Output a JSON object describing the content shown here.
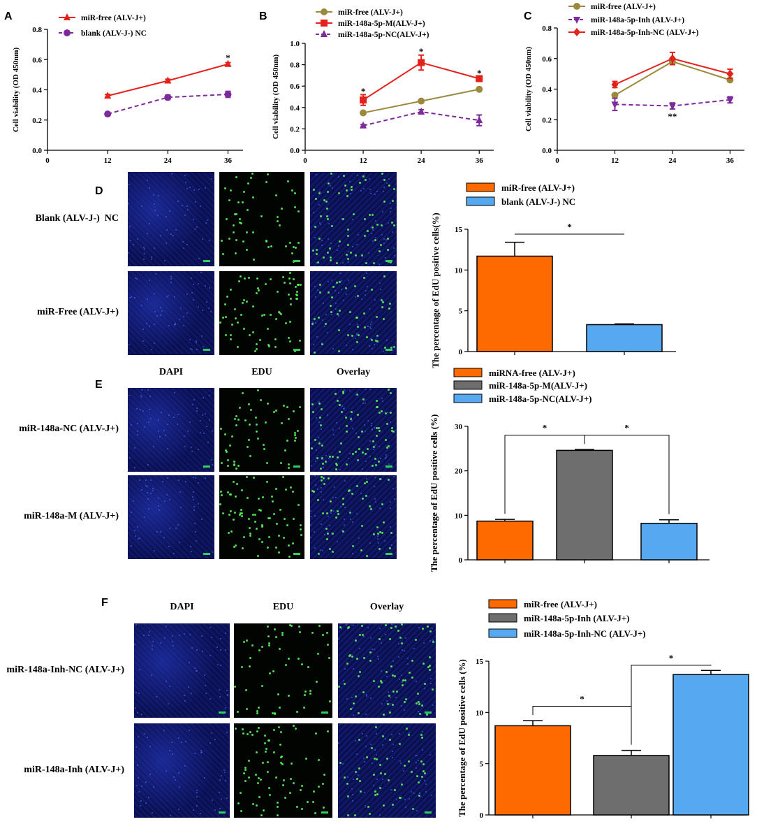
{
  "colors": {
    "red": "#e3221c",
    "olive": "#9b8a3d",
    "purple": "#7d2a9c",
    "orange": "#ff6a00",
    "lightblue": "#56a9f0",
    "gray": "#6e6e6e"
  },
  "panel_labels": {
    "A": "A",
    "B": "B",
    "C": "C",
    "D": "D",
    "E": "E",
    "F": "F"
  },
  "microscopy": {
    "columns": [
      "DAPI",
      "EDU",
      "Overlay"
    ],
    "D_rows": [
      "Blank (ALV-J-)  NC",
      "miR-Free (ALV-J+)"
    ],
    "E_rows": [
      "miR-148a-NC (ALV-J+)",
      "miR-148a-M (ALV-J+)"
    ],
    "F_rows": [
      "miR-148a-Inh-NC (ALV-J+)",
      "miR-148a-Inh (ALV-J+)"
    ]
  },
  "chart_data": [
    {
      "id": "A",
      "type": "line",
      "ylabel": "Cell viability (OD 450nm)",
      "x": [
        12,
        24,
        36
      ],
      "xticks": [
        "0",
        "12",
        "24",
        "36"
      ],
      "xlim": [
        0,
        39
      ],
      "ylim": [
        0,
        0.8
      ],
      "yticks": [
        "0.0",
        "0.2",
        "0.4",
        "0.6",
        "0.8"
      ],
      "series": [
        {
          "name": "miR-free (ALV-J+)",
          "values": [
            0.36,
            0.46,
            0.57
          ],
          "errors": [
            0.01,
            0.01,
            0.01
          ],
          "color": "#e3221c",
          "marker": "triangle",
          "dashed": false
        },
        {
          "name": "blank (ALV-J-) NC",
          "values": [
            0.24,
            0.35,
            0.37
          ],
          "errors": [
            0.01,
            0.015,
            0.02
          ],
          "color": "#7d2a9c",
          "marker": "circle",
          "dashed": true
        }
      ],
      "annotations": [
        {
          "x": 36,
          "y": 0.61,
          "text": "*"
        }
      ]
    },
    {
      "id": "B",
      "type": "line",
      "ylabel": "Cell viability (OD 450nm)",
      "x": [
        12,
        24,
        36
      ],
      "xticks": [
        "0",
        "12",
        "24",
        "36"
      ],
      "xlim": [
        0,
        39
      ],
      "ylim": [
        0,
        1.0
      ],
      "yticks": [
        "0.0",
        "0.2",
        "0.4",
        "0.6",
        "0.8",
        "1.0"
      ],
      "series": [
        {
          "name": "miR-free (ALV-J+)",
          "values": [
            0.35,
            0.46,
            0.57
          ],
          "errors": [
            0.01,
            0.01,
            0.01
          ],
          "color": "#9b8a3d",
          "marker": "circle",
          "dashed": false
        },
        {
          "name": "miR-148a-5p-M(ALV-J+)",
          "values": [
            0.47,
            0.82,
            0.67
          ],
          "errors": [
            0.05,
            0.07,
            0.02
          ],
          "color": "#e3221c",
          "marker": "square",
          "dashed": false
        },
        {
          "name": "miR-148a-5p-NC(ALV-J+)",
          "values": [
            0.23,
            0.36,
            0.28
          ],
          "errors": [
            0.01,
            0.02,
            0.05
          ],
          "color": "#7d2a9c",
          "marker": "triangle",
          "dashed": true
        }
      ],
      "annotations": [
        {
          "x": 12,
          "y": 0.55,
          "text": "*"
        },
        {
          "x": 24,
          "y": 0.92,
          "text": "*"
        },
        {
          "x": 36,
          "y": 0.72,
          "text": "*"
        }
      ]
    },
    {
      "id": "C",
      "type": "line",
      "ylabel": "Cell viability (OD 450nm)",
      "x": [
        12,
        24,
        36
      ],
      "xticks": [
        "0",
        "12",
        "24",
        "36"
      ],
      "xlim": [
        0,
        39
      ],
      "ylim": [
        0,
        0.8
      ],
      "yticks": [
        "0.0",
        "0.2",
        "0.4",
        "0.6",
        "0.8"
      ],
      "series": [
        {
          "name": "miR-free (ALV-J+)",
          "values": [
            0.36,
            0.58,
            0.46
          ],
          "errors": [
            0.01,
            0.02,
            0.01
          ],
          "color": "#9b8a3d",
          "marker": "circle",
          "dashed": false
        },
        {
          "name": "miR-148a-5p-Inh (ALV-J+)",
          "values": [
            0.3,
            0.29,
            0.33
          ],
          "errors": [
            0.04,
            0.02,
            0.02
          ],
          "color": "#7d2a9c",
          "marker": "triangle-down",
          "dashed": true
        },
        {
          "name": "miR-148a-5p-Inh-NC (ALV-J+)",
          "values": [
            0.43,
            0.6,
            0.5
          ],
          "errors": [
            0.02,
            0.04,
            0.03
          ],
          "color": "#e3221c",
          "marker": "diamond",
          "dashed": false
        }
      ],
      "annotations": [
        {
          "x": 24,
          "y": 0.22,
          "text": "**"
        }
      ]
    },
    {
      "id": "D",
      "type": "bar",
      "ylabel": "The percentage of EdU positive cells(%)",
      "categories": [
        "miR-free (ALV-J+)",
        "blank (ALV-J-) NC"
      ],
      "values": [
        11.7,
        3.3
      ],
      "errors": [
        1.7,
        0.1
      ],
      "colors": [
        "#ff6a00",
        "#56a9f0"
      ],
      "ylim": [
        0,
        15
      ],
      "yticks": [
        "0",
        "5",
        "10",
        "15"
      ],
      "significance": [
        {
          "from": 0,
          "to": 1,
          "text": "*",
          "style": "line",
          "y": 14.4
        }
      ]
    },
    {
      "id": "E",
      "type": "bar",
      "ylabel": "The percentage of EdU positive cells (%)",
      "categories": [
        "miRNA-free (ALV-J+)",
        "miR-148a-5p-M(ALV-J+)",
        "miR-148a-5p-NC(ALV-J+)"
      ],
      "values": [
        8.7,
        24.6,
        8.2
      ],
      "errors": [
        0.4,
        0.2,
        0.8
      ],
      "colors": [
        "#ff6a00",
        "#6e6e6e",
        "#56a9f0"
      ],
      "ylim": [
        0,
        30
      ],
      "yticks": [
        "0",
        "10",
        "20",
        "30"
      ],
      "significance": [
        {
          "from": 0,
          "to": 1,
          "text": "*",
          "style": "bracket",
          "y": 28
        },
        {
          "from": 1,
          "to": 2,
          "text": "*",
          "style": "bracket",
          "y": 28
        }
      ]
    },
    {
      "id": "F",
      "type": "bar",
      "ylabel": "The percentage of EdU positive cells (%)",
      "categories": [
        "miR-free (ALV-J+)",
        "miR-148a-5p-Inh (ALV-J+)",
        "miR-148a-5p-Inh-NC (ALV-J+)"
      ],
      "values": [
        8.7,
        5.8,
        13.7
      ],
      "errors": [
        0.5,
        0.5,
        0.4
      ],
      "colors": [
        "#ff6a00",
        "#6e6e6e",
        "#56a9f0"
      ],
      "ylim": [
        0,
        15
      ],
      "yticks": [
        "0",
        "5",
        "10",
        "15"
      ],
      "significance": [
        {
          "from": 0,
          "to": 1,
          "text": "*",
          "style": "bracket",
          "y": 10.6
        },
        {
          "from": 1,
          "to": 2,
          "text": "*",
          "style": "bracket",
          "y": 14.6
        }
      ]
    }
  ]
}
